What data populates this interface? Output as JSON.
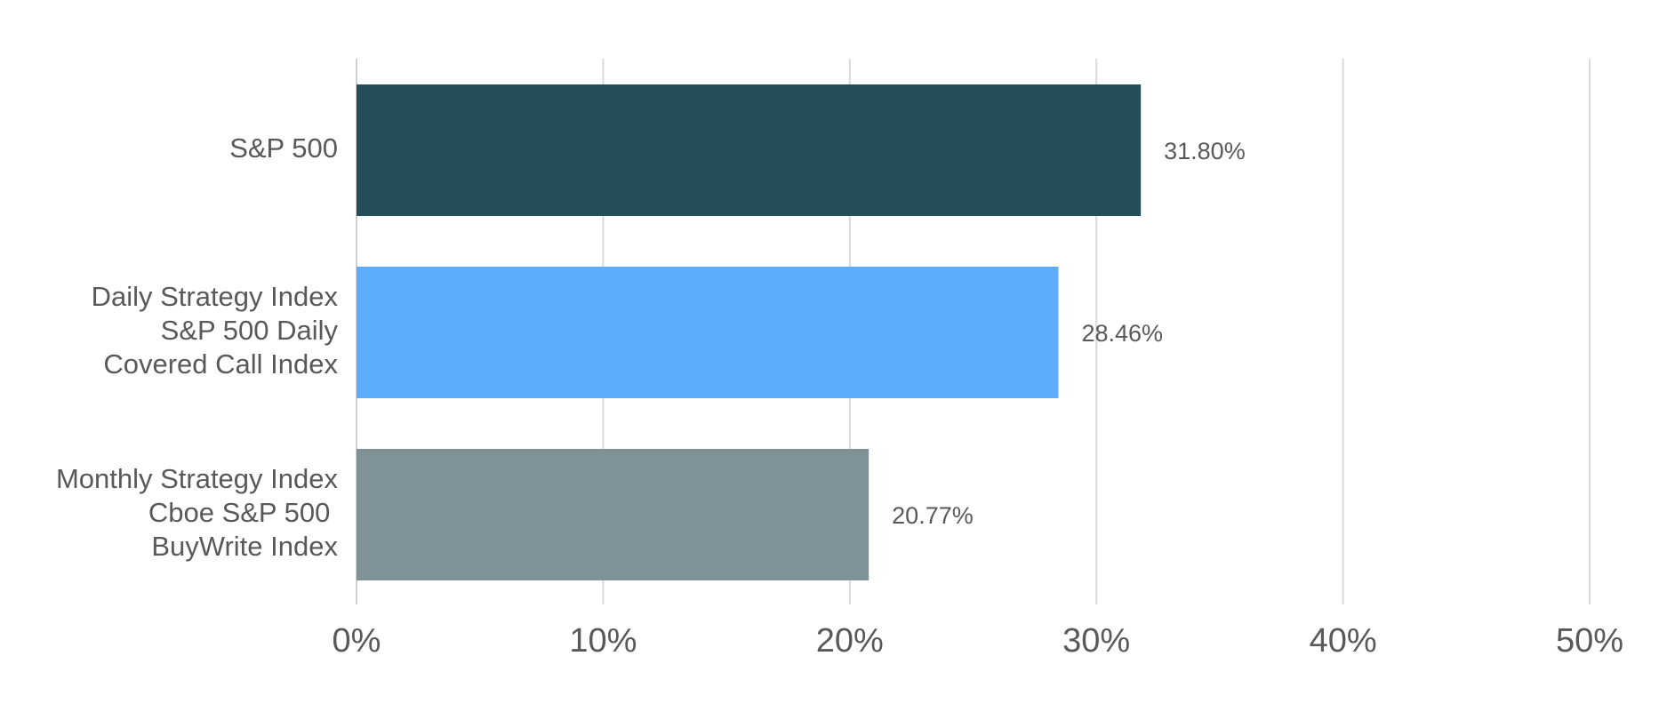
{
  "chart_data": {
    "type": "bar",
    "orientation": "horizontal",
    "categories": [
      [
        "S&P 500"
      ],
      [
        "Daily Strategy Index",
        "S&P 500 Daily",
        "Covered Call Index"
      ],
      [
        "Monthly Strategy Index",
        "Cboe S&P 500 ",
        "BuyWrite Index"
      ]
    ],
    "values": [
      31.8,
      28.46,
      20.77
    ],
    "data_labels": [
      "31.80%",
      "28.46%",
      "20.77%"
    ],
    "colors": [
      "#264e58",
      "#5badfb",
      "#7e9297"
    ],
    "x_ticks": [
      "0%",
      "10%",
      "20%",
      "30%",
      "40%",
      "50%"
    ],
    "xlim": [
      0,
      50
    ],
    "grid": true,
    "legend": false
  }
}
